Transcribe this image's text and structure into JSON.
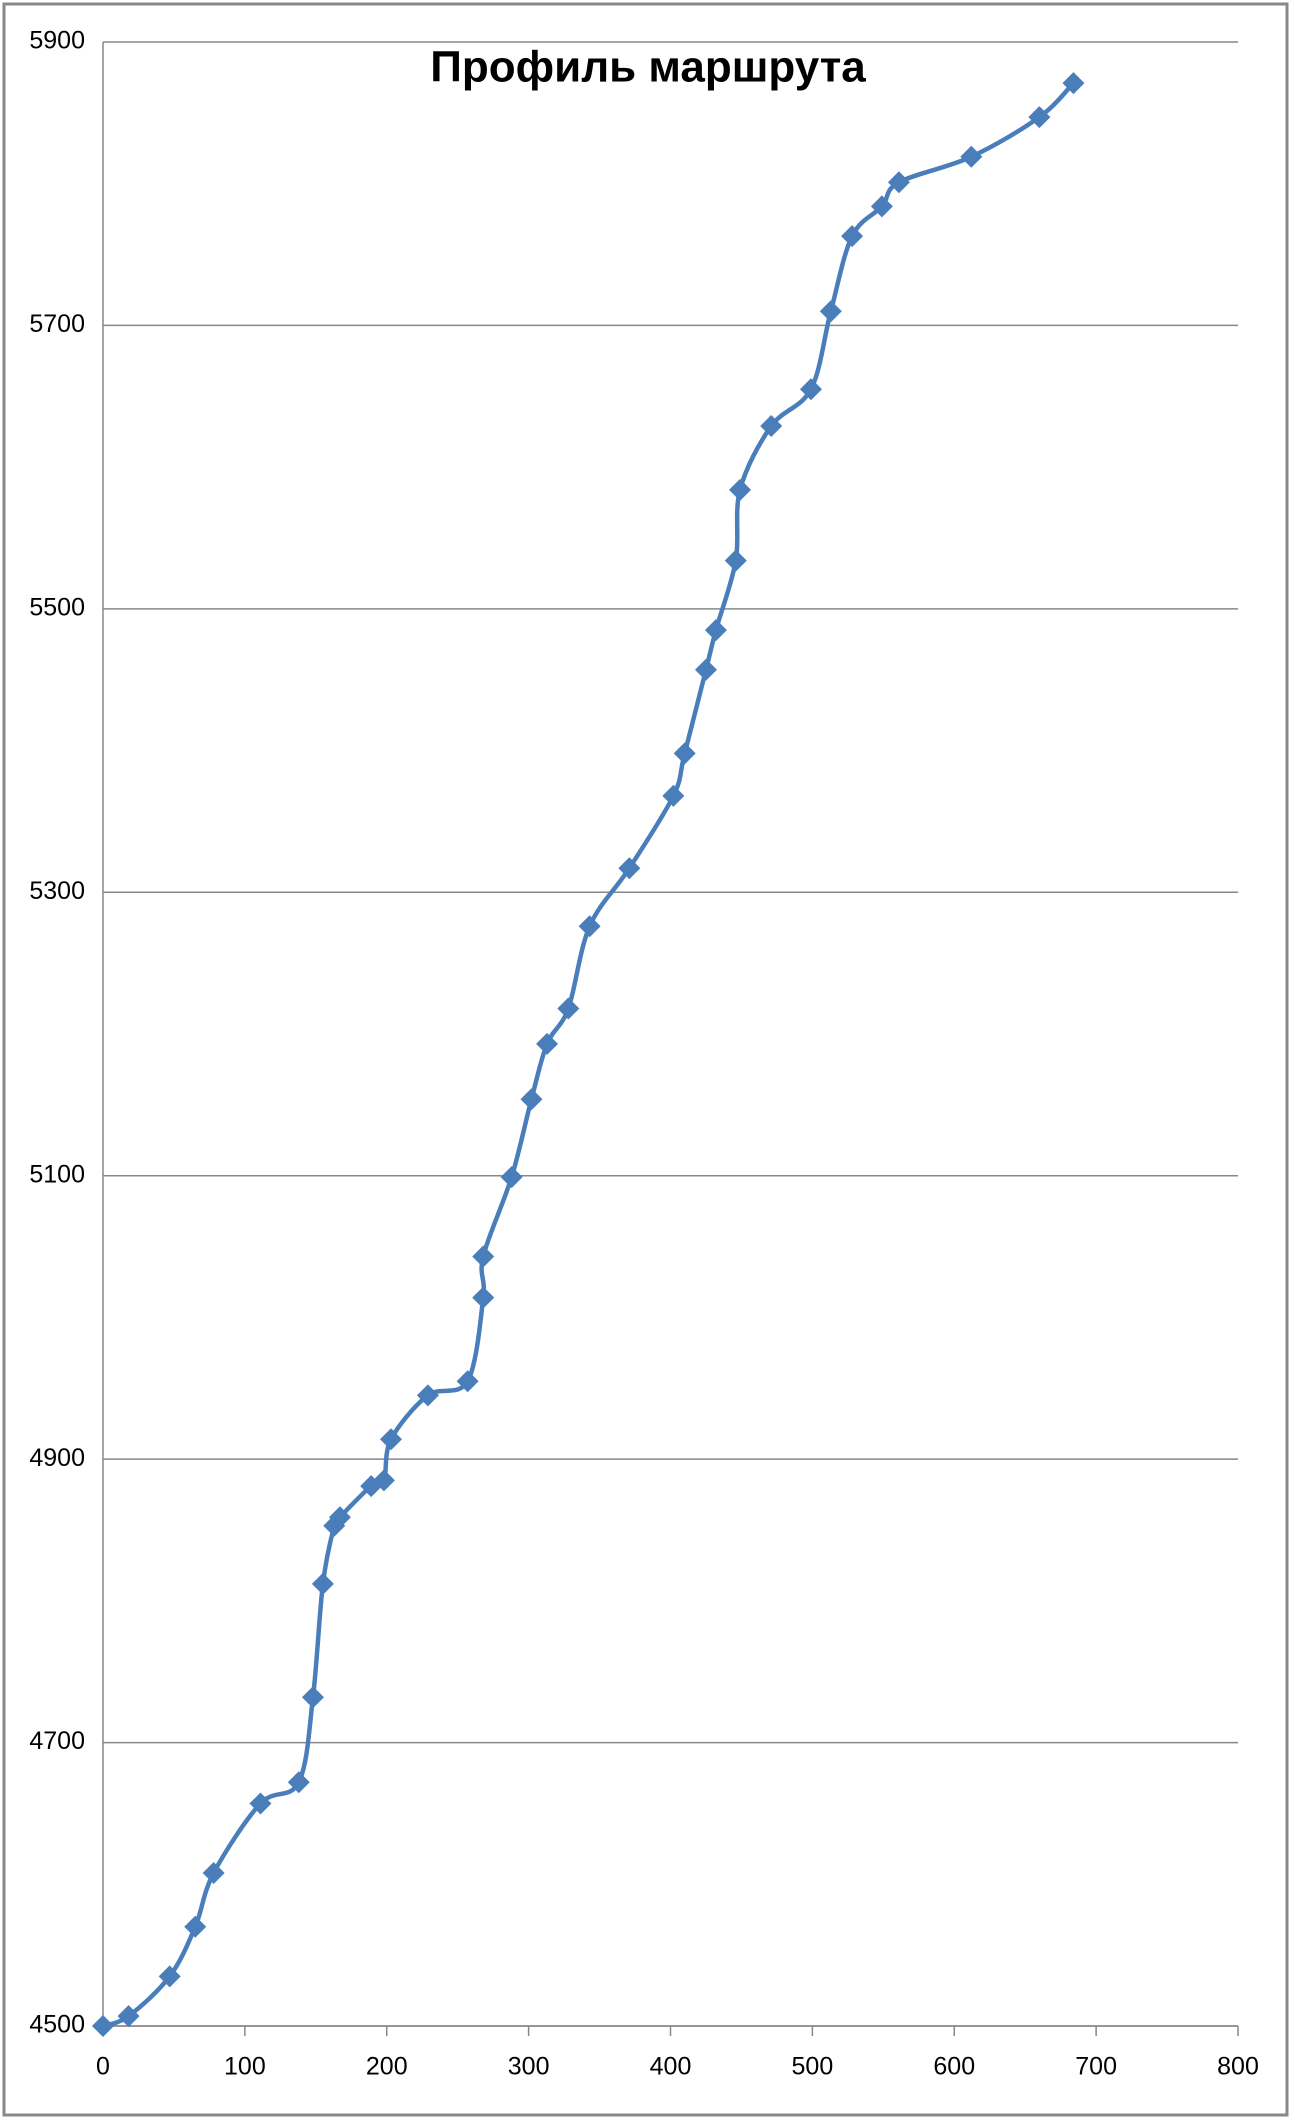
{
  "chart_data": {
    "type": "line",
    "title": "Профиль маршрута",
    "x": [
      0,
      18,
      47,
      65,
      78,
      111,
      138,
      148,
      155,
      163,
      167,
      189,
      198,
      203,
      229,
      257,
      268,
      268,
      288,
      302,
      313,
      328,
      343,
      371,
      402,
      410,
      425,
      432,
      446,
      449,
      471,
      499,
      513,
      528,
      549,
      561,
      612,
      660,
      684
    ],
    "series": [
      {
        "color": "#4a7ebb",
        "values": [
          4500,
          4507,
          4535,
          4570,
          4608,
          4657,
          4672,
          4732,
          4812,
          4853,
          4859,
          4881,
          4885,
          4914,
          4945,
          4955,
          5014,
          5043,
          5099,
          5154,
          5193,
          5218,
          5276,
          5317,
          5368,
          5398,
          5457,
          5485,
          5534,
          5584,
          5629,
          5655,
          5710,
          5763,
          5784,
          5801,
          5819,
          5847,
          5871
        ]
      }
    ],
    "xlim": [
      0,
      800
    ],
    "xticks": [
      0,
      100,
      200,
      300,
      400,
      500,
      600,
      700,
      800
    ],
    "ylim": [
      4500,
      5900
    ],
    "yticks": [
      4500,
      4700,
      4900,
      5100,
      5300,
      5500,
      5700,
      5900
    ],
    "grid": true
  }
}
